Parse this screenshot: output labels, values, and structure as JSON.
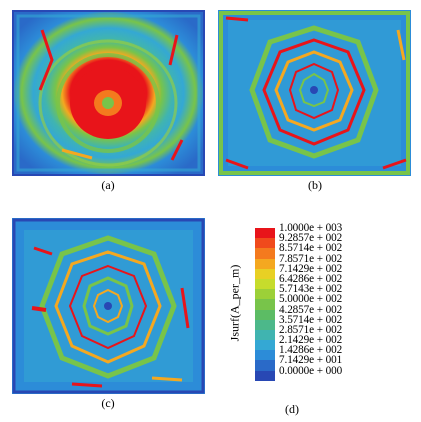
{
  "figure": {
    "panels": [
      {
        "caption": "(a)",
        "pattern": "central-red-blob"
      },
      {
        "caption": "(b)",
        "pattern": "concentric-octagons"
      },
      {
        "caption": "(c)",
        "pattern": "concentric-octagons-noisy"
      }
    ],
    "legend": {
      "caption": "(d)",
      "title": "Jsurf(A_per_m)",
      "levels": [
        {
          "label": "1.0000e + 003",
          "color": "#e8141a"
        },
        {
          "label": "9.2857e + 002",
          "color": "#f04a1c"
        },
        {
          "label": "8.5714e + 002",
          "color": "#f47a1e"
        },
        {
          "label": "7.8571e + 002",
          "color": "#f4a820"
        },
        {
          "label": "7.1429e + 002",
          "color": "#e8d024"
        },
        {
          "label": "6.4286e + 002",
          "color": "#c6dc2c"
        },
        {
          "label": "5.7143e + 002",
          "color": "#9cd038"
        },
        {
          "label": "5.0000e + 002",
          "color": "#78c44a"
        },
        {
          "label": "4.2857e + 002",
          "color": "#5cbc64"
        },
        {
          "label": "3.5714e + 002",
          "color": "#4cb88a"
        },
        {
          "label": "2.8571e + 002",
          "color": "#40b4b0"
        },
        {
          "label": "2.1429e + 002",
          "color": "#34a8d4"
        },
        {
          "label": "1.4286e + 002",
          "color": "#2c8cd8"
        },
        {
          "label": "7.1429e + 001",
          "color": "#2a6ac8"
        },
        {
          "label": "0.0000e + 000",
          "color": "#2848b4"
        }
      ]
    }
  }
}
